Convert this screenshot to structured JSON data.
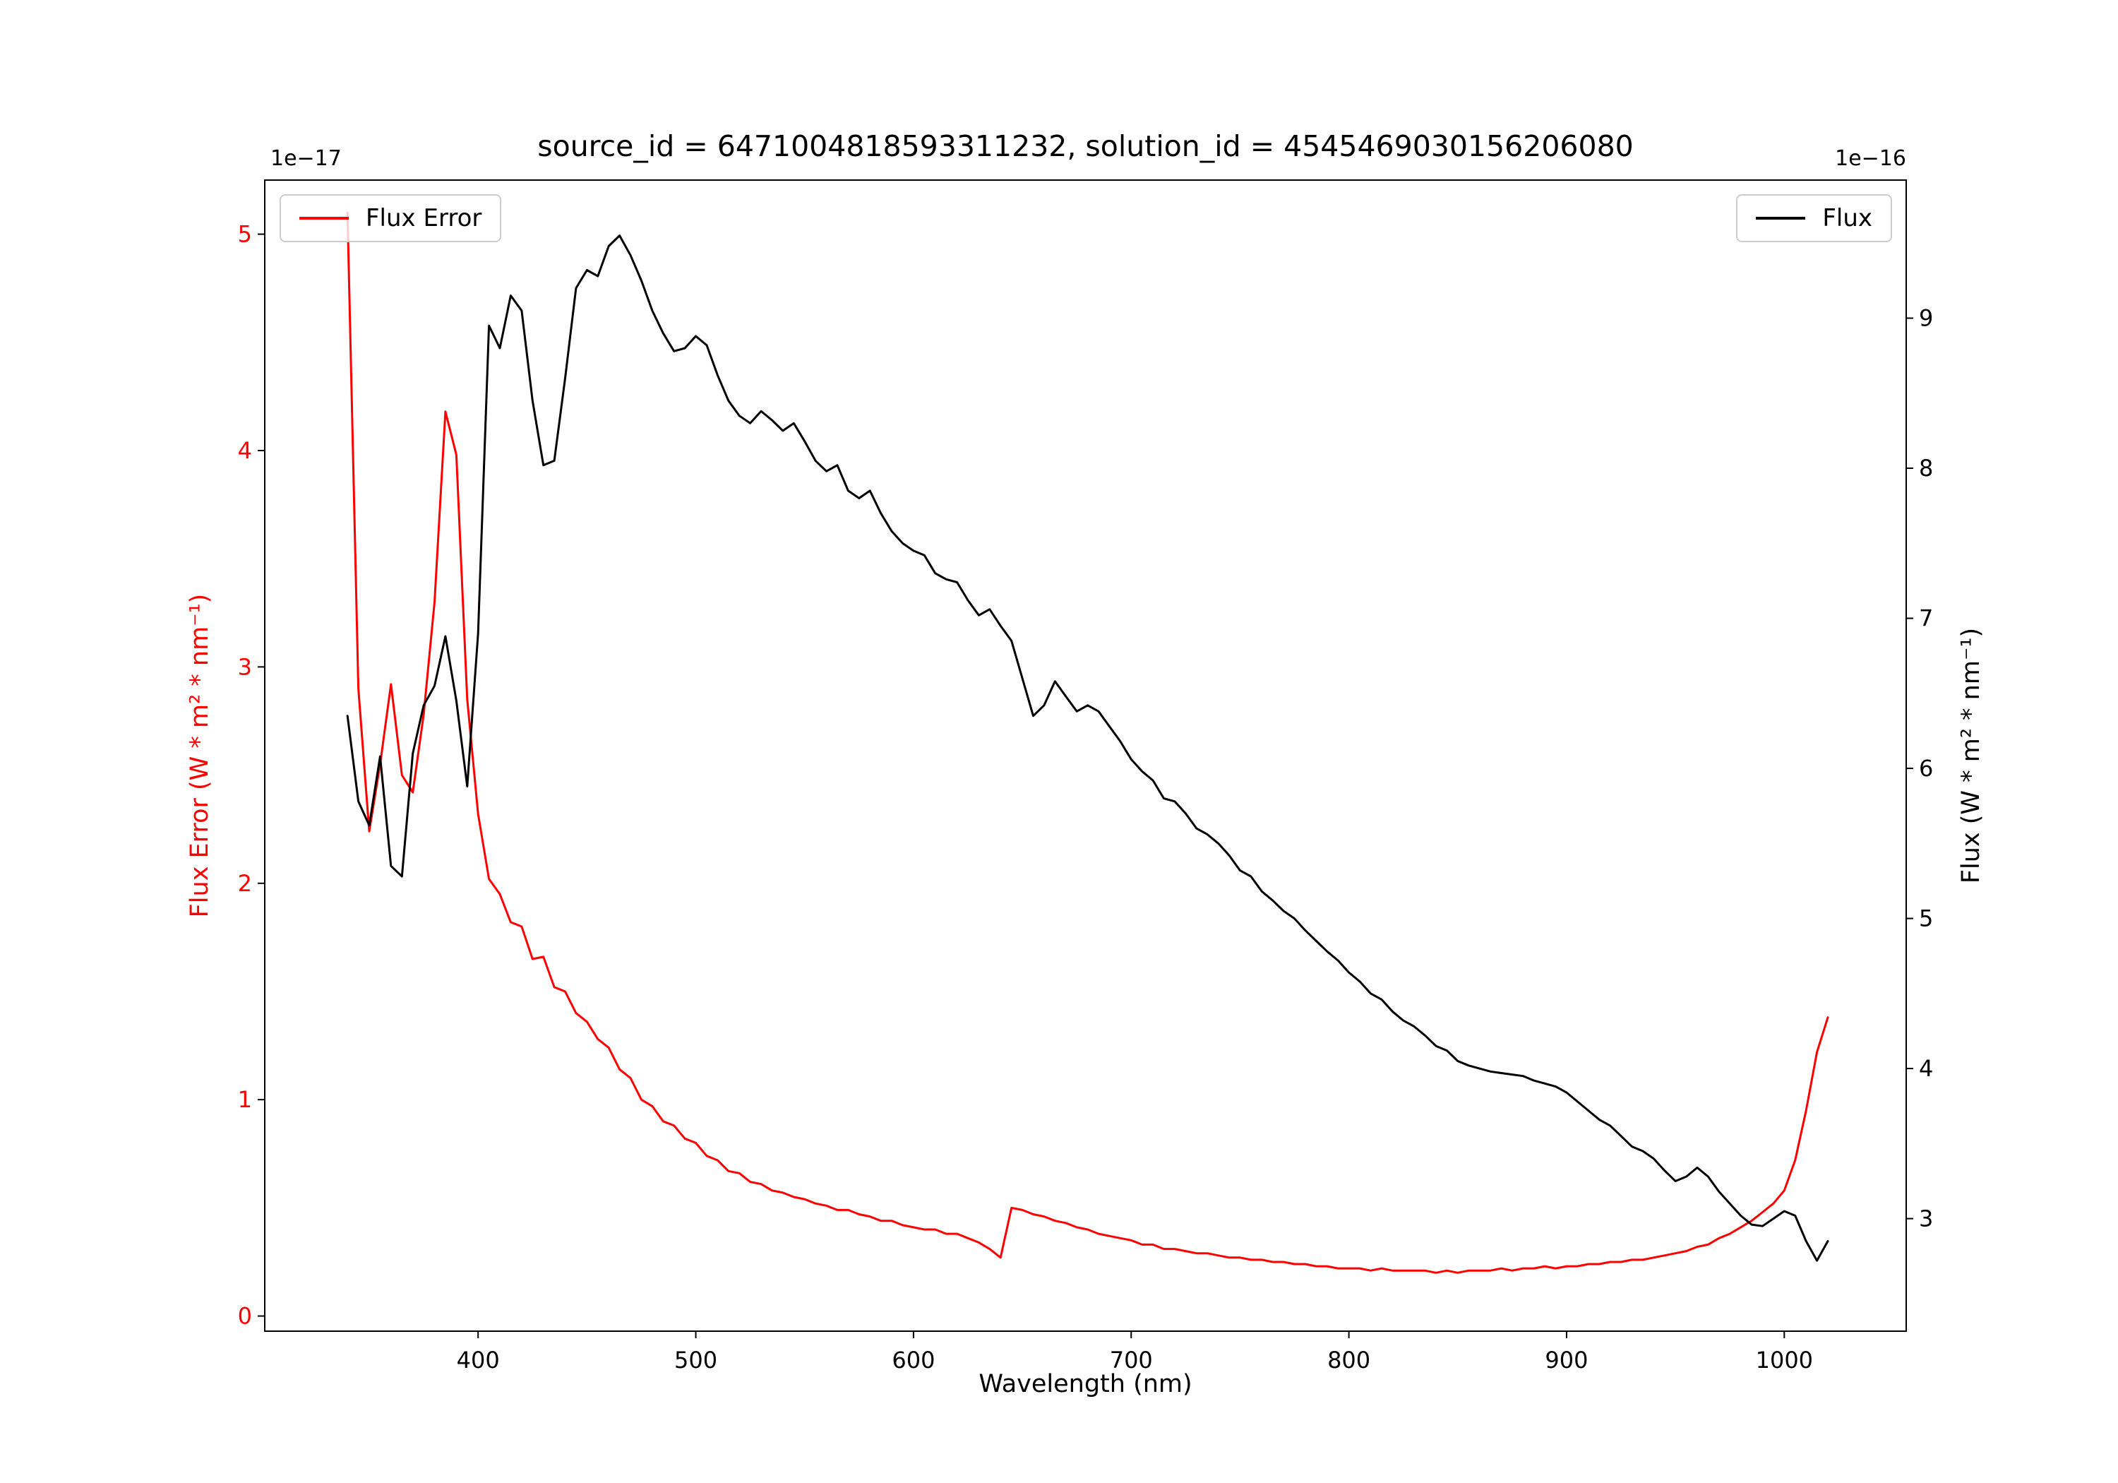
{
  "chart_data": {
    "type": "line",
    "title": "source_id = 6471004818593311232, solution_id = 4545469030156206080",
    "xlabel": "Wavelength (nm)",
    "ylabel_left": "Flux Error (W * m² * nm⁻¹)",
    "ylabel_right": "Flux (W * m² * nm⁻¹)",
    "offset_text_left": "1e−17",
    "offset_text_right": "1e−16",
    "axis_color_left": "#ff0000",
    "axis_color_right": "#000000",
    "grid": false,
    "xlim": [
      302,
      1056
    ],
    "ylim_left": [
      -0.07,
      5.25
    ],
    "ylim_right": [
      2.25,
      9.92
    ],
    "xticks": [
      400,
      500,
      600,
      700,
      800,
      900,
      1000
    ],
    "yticks_left": [
      0,
      1,
      2,
      3,
      4,
      5
    ],
    "yticks_right": [
      3,
      4,
      5,
      6,
      7,
      8,
      9
    ],
    "legends": [
      {
        "label": "Flux Error",
        "color": "#ff0000",
        "position": "upper left"
      },
      {
        "label": "Flux",
        "color": "#000000",
        "position": "upper right"
      }
    ],
    "x": [
      340,
      345,
      350,
      355,
      360,
      365,
      370,
      375,
      380,
      385,
      390,
      395,
      400,
      405,
      410,
      415,
      420,
      425,
      430,
      435,
      440,
      445,
      450,
      455,
      460,
      465,
      470,
      475,
      480,
      485,
      490,
      495,
      500,
      505,
      510,
      515,
      520,
      525,
      530,
      535,
      540,
      545,
      550,
      555,
      560,
      565,
      570,
      575,
      580,
      585,
      590,
      595,
      600,
      605,
      610,
      615,
      620,
      625,
      630,
      635,
      640,
      645,
      650,
      655,
      660,
      665,
      670,
      675,
      680,
      685,
      690,
      695,
      700,
      705,
      710,
      715,
      720,
      725,
      730,
      735,
      740,
      745,
      750,
      755,
      760,
      765,
      770,
      775,
      780,
      785,
      790,
      795,
      800,
      805,
      810,
      815,
      820,
      825,
      830,
      835,
      840,
      845,
      850,
      855,
      860,
      865,
      870,
      875,
      880,
      885,
      890,
      895,
      900,
      905,
      910,
      915,
      920,
      925,
      930,
      935,
      940,
      945,
      950,
      955,
      960,
      965,
      970,
      975,
      980,
      985,
      990,
      995,
      1000,
      1005,
      1010,
      1015,
      1020
    ],
    "series": [
      {
        "name": "Flux Error",
        "axis": "left",
        "color": "#ff0000",
        "unit_scale": "1e-17",
        "values": [
          5.1,
          2.9,
          2.24,
          2.55,
          2.92,
          2.5,
          2.42,
          2.78,
          3.3,
          4.18,
          3.98,
          2.85,
          2.32,
          2.02,
          1.95,
          1.82,
          1.8,
          1.65,
          1.66,
          1.52,
          1.5,
          1.4,
          1.36,
          1.28,
          1.24,
          1.14,
          1.1,
          1.0,
          0.97,
          0.9,
          0.88,
          0.82,
          0.8,
          0.74,
          0.72,
          0.67,
          0.66,
          0.62,
          0.61,
          0.58,
          0.57,
          0.55,
          0.54,
          0.52,
          0.51,
          0.49,
          0.49,
          0.47,
          0.46,
          0.44,
          0.44,
          0.42,
          0.41,
          0.4,
          0.4,
          0.38,
          0.38,
          0.36,
          0.34,
          0.31,
          0.27,
          0.5,
          0.49,
          0.47,
          0.46,
          0.44,
          0.43,
          0.41,
          0.4,
          0.38,
          0.37,
          0.36,
          0.35,
          0.33,
          0.33,
          0.31,
          0.31,
          0.3,
          0.29,
          0.29,
          0.28,
          0.27,
          0.27,
          0.26,
          0.26,
          0.25,
          0.25,
          0.24,
          0.24,
          0.23,
          0.23,
          0.22,
          0.22,
          0.22,
          0.21,
          0.22,
          0.21,
          0.21,
          0.21,
          0.21,
          0.2,
          0.21,
          0.2,
          0.21,
          0.21,
          0.21,
          0.22,
          0.21,
          0.22,
          0.22,
          0.23,
          0.22,
          0.23,
          0.23,
          0.24,
          0.24,
          0.25,
          0.25,
          0.26,
          0.26,
          0.27,
          0.28,
          0.29,
          0.3,
          0.32,
          0.33,
          0.36,
          0.38,
          0.41,
          0.44,
          0.48,
          0.52,
          0.58,
          0.72,
          0.95,
          1.22,
          1.38
        ]
      },
      {
        "name": "Flux",
        "axis": "right",
        "color": "#000000",
        "unit_scale": "1e-16",
        "values": [
          6.35,
          5.78,
          5.62,
          6.08,
          5.35,
          5.28,
          6.1,
          6.42,
          6.55,
          6.88,
          6.45,
          5.88,
          6.9,
          8.95,
          8.8,
          9.15,
          9.05,
          8.45,
          8.02,
          8.05,
          8.6,
          9.2,
          9.32,
          9.28,
          9.48,
          9.55,
          9.42,
          9.25,
          9.05,
          8.9,
          8.78,
          8.8,
          8.88,
          8.82,
          8.62,
          8.45,
          8.35,
          8.3,
          8.38,
          8.32,
          8.25,
          8.3,
          8.18,
          8.05,
          7.98,
          8.02,
          7.85,
          7.8,
          7.85,
          7.7,
          7.58,
          7.5,
          7.45,
          7.42,
          7.3,
          7.26,
          7.24,
          7.12,
          7.02,
          7.06,
          6.95,
          6.85,
          6.6,
          6.35,
          6.42,
          6.58,
          6.48,
          6.38,
          6.42,
          6.38,
          6.28,
          6.18,
          6.06,
          5.98,
          5.92,
          5.8,
          5.78,
          5.7,
          5.6,
          5.56,
          5.5,
          5.42,
          5.32,
          5.28,
          5.18,
          5.12,
          5.05,
          5.0,
          4.92,
          4.85,
          4.78,
          4.72,
          4.64,
          4.58,
          4.5,
          4.46,
          4.38,
          4.32,
          4.28,
          4.22,
          4.15,
          4.12,
          4.05,
          4.02,
          4.0,
          3.98,
          3.97,
          3.96,
          3.95,
          3.92,
          3.9,
          3.88,
          3.84,
          3.78,
          3.72,
          3.66,
          3.62,
          3.55,
          3.48,
          3.45,
          3.4,
          3.32,
          3.25,
          3.28,
          3.34,
          3.28,
          3.18,
          3.1,
          3.02,
          2.96,
          2.95,
          3.0,
          3.05,
          3.02,
          2.85,
          2.72,
          2.85
        ]
      }
    ]
  }
}
